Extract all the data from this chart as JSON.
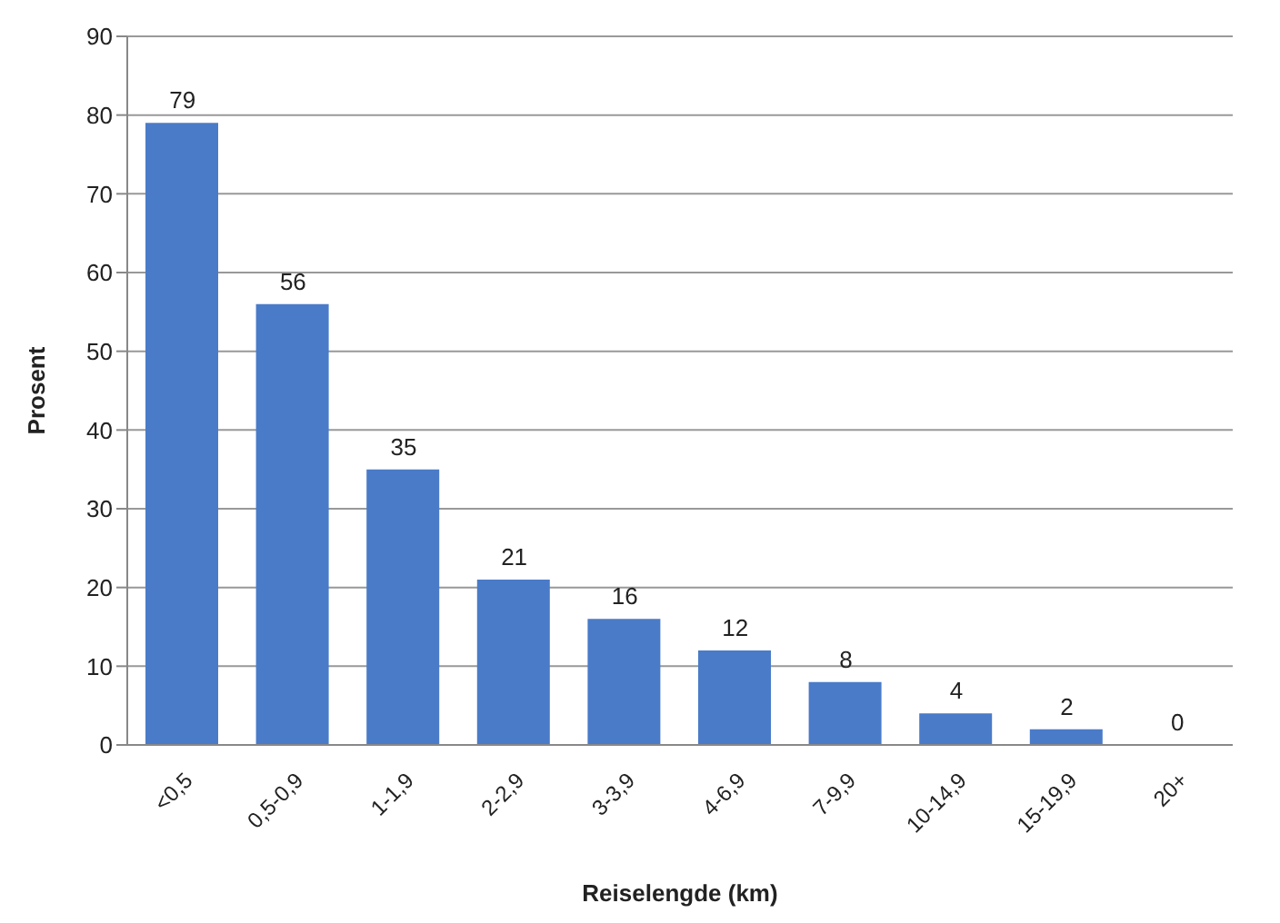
{
  "chart_data": {
    "type": "bar",
    "xlabel": "Reiselengde (km)",
    "ylabel": "Prosent",
    "categories": [
      "<0,5",
      "0,5-0,9",
      "1-1,9",
      "2-2,9",
      "3-3,9",
      "4-6,9",
      "7-9,9",
      "10-14,9",
      "15-19,9",
      "20+"
    ],
    "values": [
      79,
      56,
      35,
      21,
      16,
      12,
      8,
      4,
      2,
      0
    ],
    "color": "#4a7bc8",
    "ylim": [
      0,
      90
    ],
    "yticks": [
      0,
      10,
      20,
      30,
      40,
      50,
      60,
      70,
      80,
      90
    ],
    "grid": "y",
    "data_labels": true
  }
}
